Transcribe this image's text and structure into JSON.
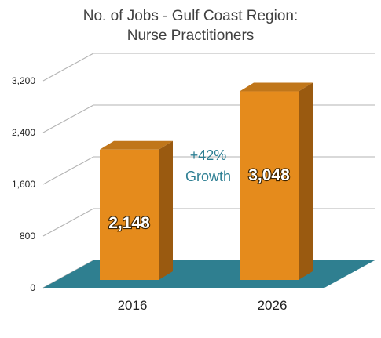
{
  "chart_data": {
    "type": "bar",
    "title": "No. of Jobs - Gulf Coast Region:",
    "subtitle": "Nurse Practitioners",
    "categories": [
      "2016",
      "2026"
    ],
    "values": [
      2148,
      3048
    ],
    "data_labels": [
      "2,148",
      "3,048"
    ],
    "ylim": [
      0,
      3200
    ],
    "yticks": [
      0,
      800,
      1600,
      2400,
      3200
    ],
    "ytick_labels": [
      "0",
      "800",
      "1,600",
      "2,400",
      "3,200"
    ],
    "xlabel": "",
    "ylabel": "",
    "grid": true,
    "style": "3d-column",
    "annotation": {
      "lines": [
        "+42%",
        "Growth"
      ]
    },
    "colors": {
      "bar_front": "#e58b1c",
      "bar_side": "#9a5a10",
      "bar_top": "#c0761a",
      "floor": "#2f7f90",
      "gridline": "#b3b3b3",
      "annotation": "#2e7f93"
    }
  }
}
